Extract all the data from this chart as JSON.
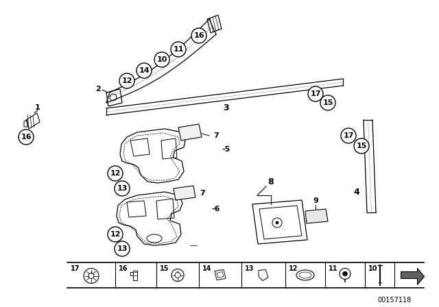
{
  "bg_color": "#ffffff",
  "line_color": "#000000",
  "fig_width": 6.4,
  "fig_height": 4.48,
  "dpi": 100,
  "watermark": "00157118"
}
